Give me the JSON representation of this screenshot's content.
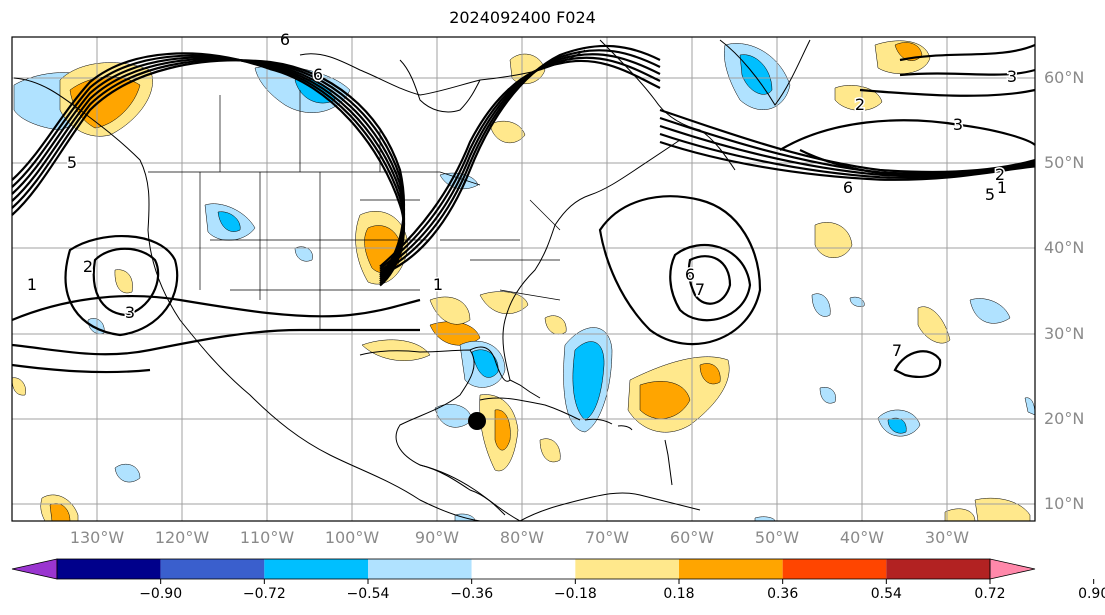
{
  "title": "2024092400 F024",
  "lon_labels": [
    "130°W",
    "120°W",
    "110°W",
    "100°W",
    "90°W",
    "80°W",
    "70°W",
    "60°W",
    "50°W",
    "40°W",
    "30°W"
  ],
  "lat_labels": [
    "60°N",
    "50°N",
    "40°N",
    "30°N",
    "20°N",
    "10°N"
  ],
  "colorbar": {
    "labels": [
      "−0.90",
      "−0.72",
      "−0.54",
      "−0.36",
      "−0.18",
      "0.18",
      "0.36",
      "0.54",
      "0.72",
      "0.90"
    ],
    "colors": [
      "#9a35d0",
      "#00008b",
      "#3a5fcd",
      "#00bfff",
      "#b0e2ff",
      "#ffffff",
      "#ffe88c",
      "#ffa500",
      "#ff4500",
      "#b22222",
      "#ff88aa"
    ]
  },
  "contour_labels": [
    "6",
    "6",
    "5",
    "1",
    "2",
    "3",
    "1",
    "2",
    "3",
    "2",
    "5",
    "6",
    "7",
    "3",
    "1",
    "6",
    "7"
  ],
  "palette": {
    "neg1": "#b0e2ff",
    "neg2": "#00bfff",
    "pos1": "#ffe88c",
    "pos2": "#ffa500"
  }
}
